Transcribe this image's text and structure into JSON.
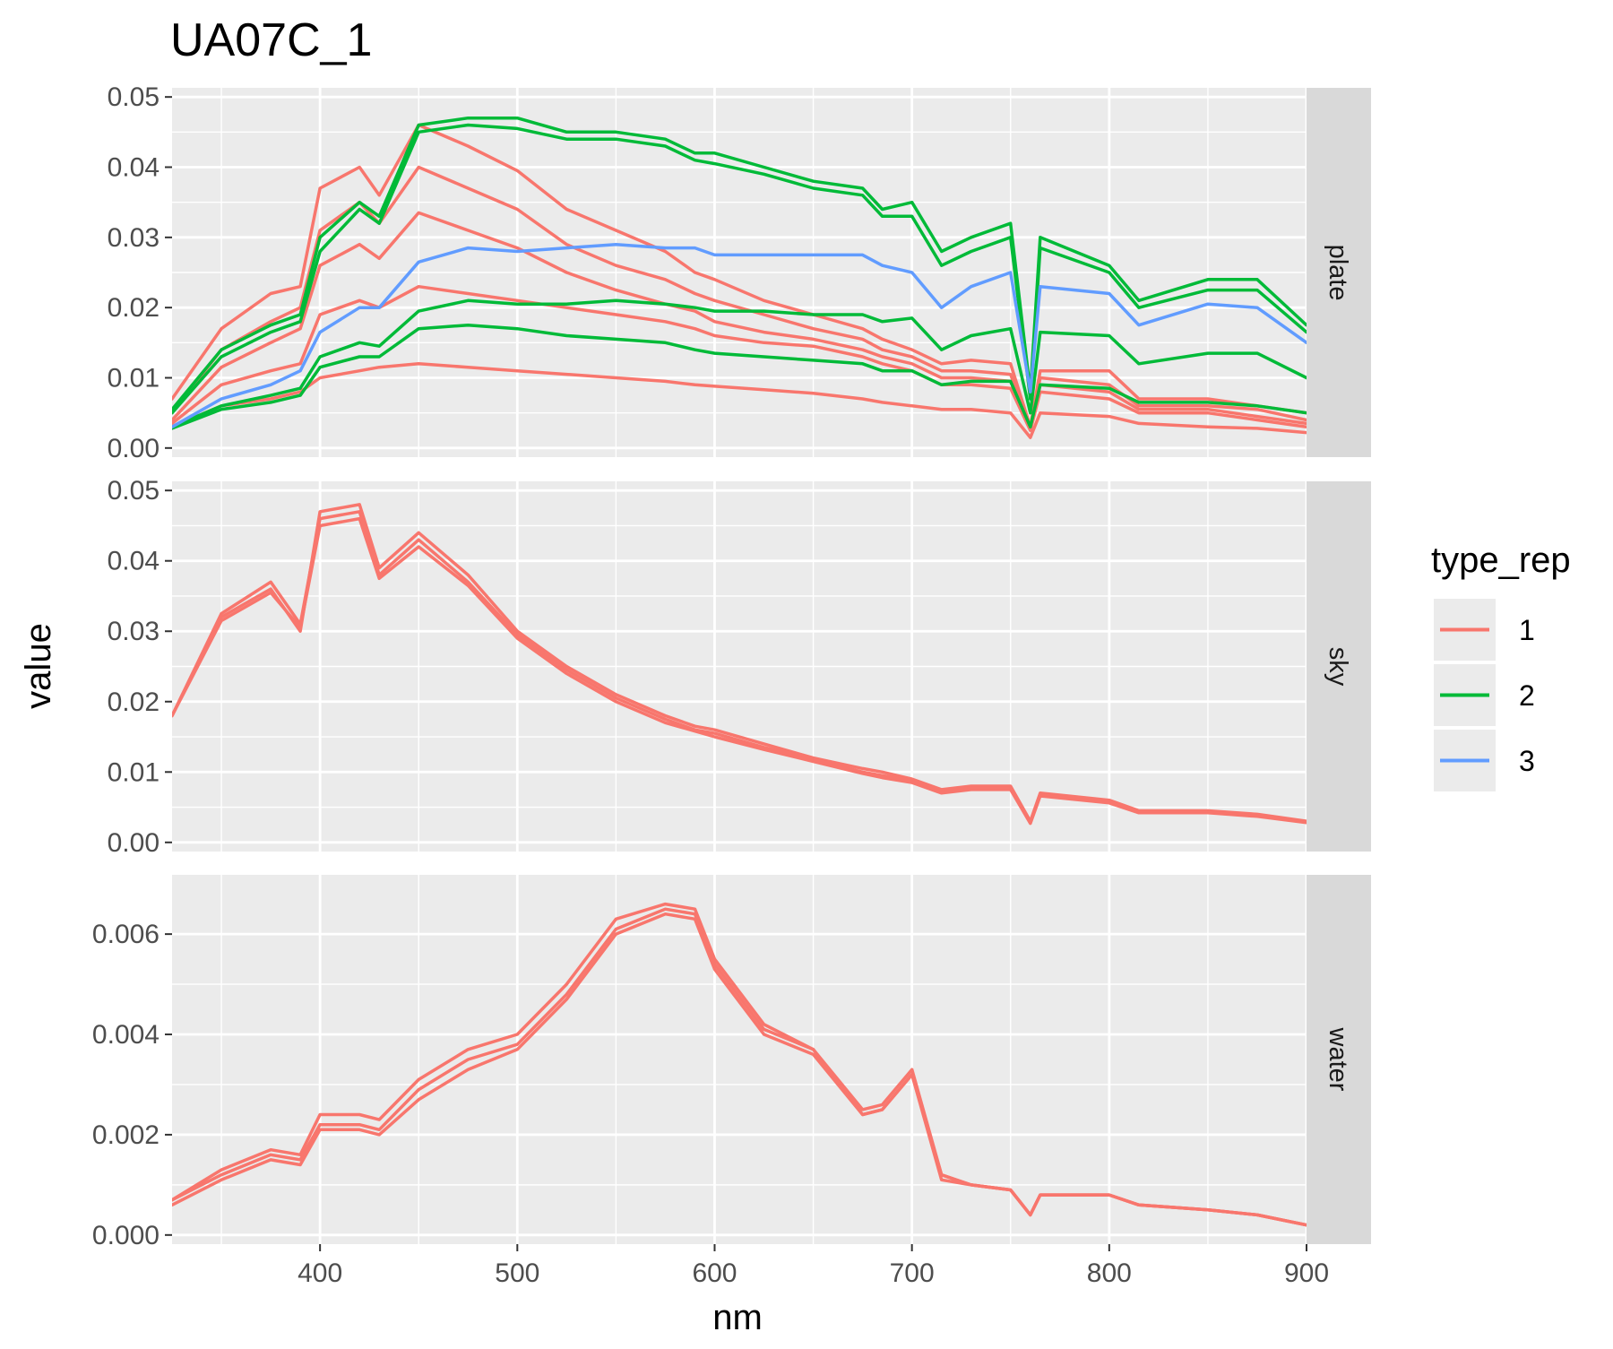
{
  "chart_data": {
    "type": "line",
    "title": "UA07C_1",
    "xlabel": "nm",
    "ylabel": "value",
    "xlim": [
      325,
      900
    ],
    "x_ticks": [
      400,
      500,
      600,
      700,
      800,
      900
    ],
    "x_tick_labels": [
      "400",
      "500",
      "600",
      "700",
      "800",
      "900"
    ],
    "grid": true,
    "legend": {
      "title": "type_rep",
      "placement": "right",
      "items": [
        {
          "label": "1",
          "color": "#F8766D"
        },
        {
          "label": "2",
          "color": "#00BA38"
        },
        {
          "label": "3",
          "color": "#619CFF"
        }
      ]
    },
    "x": [
      325,
      350,
      375,
      390,
      400,
      420,
      430,
      450,
      475,
      500,
      525,
      550,
      575,
      590,
      600,
      625,
      650,
      675,
      685,
      700,
      715,
      730,
      750,
      760,
      765,
      800,
      815,
      850,
      875,
      900
    ],
    "panels": [
      {
        "strip": "plate",
        "ylim": [
          0,
          0.05
        ],
        "y_ticks": [
          0,
          0.01,
          0.02,
          0.03,
          0.04,
          0.05
        ],
        "y_tick_labels": [
          "0.00",
          "0.01",
          "0.02",
          "0.03",
          "0.04",
          "0.05"
        ],
        "series": [
          {
            "group": "1",
            "values": [
              0.007,
              0.017,
              0.022,
              0.023,
              0.037,
              0.04,
              0.036,
              0.046,
              0.043,
              0.0395,
              0.034,
              0.031,
              0.028,
              0.025,
              0.024,
              0.021,
              0.019,
              0.017,
              0.0155,
              0.014,
              0.012,
              0.0125,
              0.012,
              0.003,
              0.011,
              0.011,
              0.007,
              0.007,
              0.006,
              0.005
            ]
          },
          {
            "group": "1",
            "values": [
              0.005,
              0.014,
              0.018,
              0.02,
              0.031,
              0.035,
              0.032,
              0.04,
              0.037,
              0.034,
              0.029,
              0.026,
              0.024,
              0.022,
              0.021,
              0.019,
              0.017,
              0.0155,
              0.014,
              0.013,
              0.011,
              0.011,
              0.0105,
              0.003,
              0.01,
              0.009,
              0.006,
              0.006,
              0.0055,
              0.004
            ]
          },
          {
            "group": "1",
            "values": [
              0.004,
              0.0115,
              0.015,
              0.017,
              0.026,
              0.029,
              0.027,
              0.0335,
              0.031,
              0.0285,
              0.025,
              0.0225,
              0.0205,
              0.0195,
              0.018,
              0.0165,
              0.0155,
              0.014,
              0.013,
              0.012,
              0.01,
              0.01,
              0.0095,
              0.003,
              0.009,
              0.008,
              0.0055,
              0.0055,
              0.0045,
              0.0035
            ]
          },
          {
            "group": "1",
            "values": [
              0.0035,
              0.009,
              0.011,
              0.012,
              0.019,
              0.021,
              0.02,
              0.023,
              0.022,
              0.021,
              0.02,
              0.019,
              0.018,
              0.017,
              0.016,
              0.015,
              0.0145,
              0.013,
              0.012,
              0.011,
              0.009,
              0.009,
              0.0085,
              0.0025,
              0.008,
              0.007,
              0.005,
              0.005,
              0.004,
              0.003
            ]
          },
          {
            "group": "1",
            "values": [
              0.003,
              0.006,
              0.007,
              0.008,
              0.01,
              0.011,
              0.0115,
              0.012,
              0.0115,
              0.011,
              0.0105,
              0.01,
              0.0095,
              0.009,
              0.0088,
              0.0083,
              0.0078,
              0.007,
              0.0065,
              0.006,
              0.0055,
              0.0055,
              0.005,
              0.0015,
              0.005,
              0.0045,
              0.0035,
              0.003,
              0.0028,
              0.0022
            ]
          },
          {
            "group": "2",
            "values": [
              0.0055,
              0.014,
              0.0175,
              0.019,
              0.03,
              0.035,
              0.033,
              0.046,
              0.047,
              0.047,
              0.045,
              0.045,
              0.044,
              0.042,
              0.042,
              0.04,
              0.038,
              0.037,
              0.034,
              0.035,
              0.028,
              0.03,
              0.032,
              0.008,
              0.03,
              0.026,
              0.021,
              0.024,
              0.024,
              0.0175
            ]
          },
          {
            "group": "2",
            "values": [
              0.005,
              0.013,
              0.0165,
              0.018,
              0.028,
              0.034,
              0.032,
              0.045,
              0.046,
              0.0455,
              0.044,
              0.044,
              0.043,
              0.041,
              0.0405,
              0.039,
              0.037,
              0.036,
              0.033,
              0.033,
              0.026,
              0.028,
              0.03,
              0.007,
              0.0285,
              0.025,
              0.02,
              0.0225,
              0.0225,
              0.0165
            ]
          },
          {
            "group": "2",
            "values": [
              0.003,
              0.006,
              0.0075,
              0.0085,
              0.013,
              0.015,
              0.0145,
              0.0195,
              0.021,
              0.0205,
              0.0205,
              0.021,
              0.0205,
              0.02,
              0.0195,
              0.0195,
              0.019,
              0.019,
              0.018,
              0.0185,
              0.014,
              0.016,
              0.017,
              0.005,
              0.0165,
              0.016,
              0.012,
              0.0135,
              0.0135,
              0.01
            ]
          },
          {
            "group": "2",
            "values": [
              0.0028,
              0.0055,
              0.0065,
              0.0075,
              0.0115,
              0.013,
              0.013,
              0.017,
              0.0175,
              0.017,
              0.016,
              0.0155,
              0.015,
              0.014,
              0.0135,
              0.013,
              0.0125,
              0.012,
              0.011,
              0.011,
              0.009,
              0.0095,
              0.0095,
              0.003,
              0.009,
              0.0085,
              0.0065,
              0.0065,
              0.006,
              0.005
            ]
          },
          {
            "group": "3",
            "values": [
              0.003,
              0.007,
              0.009,
              0.011,
              0.0165,
              0.02,
              0.02,
              0.0265,
              0.0285,
              0.028,
              0.0285,
              0.029,
              0.0285,
              0.0285,
              0.0275,
              0.0275,
              0.0275,
              0.0275,
              0.026,
              0.025,
              0.02,
              0.023,
              0.025,
              0.008,
              0.023,
              0.022,
              0.0175,
              0.0205,
              0.02,
              0.015
            ]
          }
        ]
      },
      {
        "strip": "sky",
        "ylim": [
          0,
          0.05
        ],
        "y_ticks": [
          0,
          0.01,
          0.02,
          0.03,
          0.04,
          0.05
        ],
        "y_tick_labels": [
          "0.00",
          "0.01",
          "0.02",
          "0.03",
          "0.04",
          "0.05"
        ],
        "series": [
          {
            "group": "1",
            "values": [
              0.018,
              0.032,
              0.036,
              0.03,
              0.047,
              0.048,
              0.039,
              0.044,
              0.038,
              0.03,
              0.025,
              0.021,
              0.018,
              0.0165,
              0.016,
              0.014,
              0.012,
              0.0105,
              0.01,
              0.009,
              0.0075,
              0.008,
              0.008,
              0.003,
              0.007,
              0.006,
              0.0045,
              0.0045,
              0.004,
              0.003
            ]
          },
          {
            "group": "1",
            "values": [
              0.018,
              0.0325,
              0.037,
              0.031,
              0.046,
              0.047,
              0.038,
              0.043,
              0.037,
              0.0295,
              0.0245,
              0.0205,
              0.0175,
              0.016,
              0.0155,
              0.0135,
              0.0118,
              0.01,
              0.0095,
              0.0088,
              0.0072,
              0.0078,
              0.0078,
              0.0028,
              0.0068,
              0.0058,
              0.0043,
              0.0043,
              0.0038,
              0.0029
            ]
          },
          {
            "group": "1",
            "values": [
              0.018,
              0.0315,
              0.0355,
              0.0305,
              0.045,
              0.046,
              0.0375,
              0.042,
              0.0365,
              0.029,
              0.024,
              0.02,
              0.017,
              0.0158,
              0.015,
              0.0132,
              0.0115,
              0.0098,
              0.0092,
              0.0085,
              0.007,
              0.0075,
              0.0075,
              0.0027,
              0.0066,
              0.0056,
              0.0042,
              0.0042,
              0.0037,
              0.0028
            ]
          }
        ]
      },
      {
        "strip": "water",
        "ylim": [
          0,
          0.007
        ],
        "y_ticks": [
          0,
          0.002,
          0.004,
          0.006
        ],
        "y_tick_labels": [
          "0.000",
          "0.002",
          "0.004",
          "0.006"
        ],
        "series": [
          {
            "group": "1",
            "values": [
              0.0007,
              0.0013,
              0.0017,
              0.0016,
              0.0024,
              0.0024,
              0.0023,
              0.0031,
              0.0037,
              0.004,
              0.005,
              0.0063,
              0.0066,
              0.0065,
              0.0055,
              0.0042,
              0.0037,
              0.0025,
              0.0026,
              0.0033,
              0.0012,
              0.001,
              0.0009,
              0.0004,
              0.0008,
              0.0008,
              0.0006,
              0.0005,
              0.0004,
              0.0002
            ]
          },
          {
            "group": "1",
            "values": [
              0.0007,
              0.0012,
              0.0016,
              0.0015,
              0.0022,
              0.0022,
              0.0021,
              0.0029,
              0.0035,
              0.0038,
              0.0048,
              0.0061,
              0.0065,
              0.0064,
              0.0054,
              0.0041,
              0.0037,
              0.0024,
              0.0025,
              0.0032,
              0.0012,
              0.001,
              0.0009,
              0.0004,
              0.0008,
              0.0008,
              0.0006,
              0.0005,
              0.0004,
              0.0002
            ]
          },
          {
            "group": "1",
            "values": [
              0.0006,
              0.0011,
              0.0015,
              0.0014,
              0.0021,
              0.0021,
              0.002,
              0.0027,
              0.0033,
              0.0037,
              0.0047,
              0.006,
              0.0064,
              0.0063,
              0.0053,
              0.004,
              0.0036,
              0.0024,
              0.0025,
              0.0032,
              0.0011,
              0.001,
              0.0009,
              0.0004,
              0.0008,
              0.0008,
              0.0006,
              0.0005,
              0.0004,
              0.0002
            ]
          }
        ]
      }
    ]
  }
}
